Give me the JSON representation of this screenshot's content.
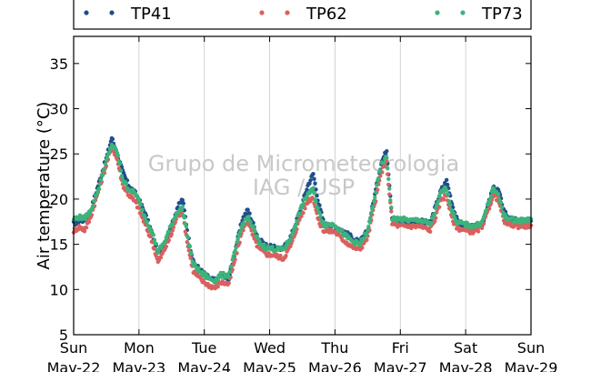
{
  "chart_data": {
    "type": "scatter",
    "title": "",
    "ylabel": "Air temperature (°C)",
    "xlabel": "",
    "ylim": [
      5,
      38
    ],
    "yticks": [
      5,
      10,
      15,
      20,
      25,
      30,
      35
    ],
    "xlim": [
      "2022-05-22T00:00",
      "2022-05-29T00:00"
    ],
    "x_ticks": [
      {
        "day": "Sun",
        "date": "Mav-22"
      },
      {
        "day": "Mon",
        "date": "Mav-23"
      },
      {
        "day": "Tue",
        "date": "Mav-24"
      },
      {
        "day": "Wed",
        "date": "Mav-25"
      },
      {
        "day": "Thu",
        "date": "Mav-26"
      },
      {
        "day": "Fri",
        "date": "Mav-27"
      },
      {
        "day": "Sat",
        "date": "Mav-28"
      },
      {
        "day": "Sun",
        "date": "Mav-29"
      }
    ],
    "grid": "vertical",
    "legend_position": "top",
    "watermark": [
      "Grupo de Micrometeorologia",
      "IAG / USP"
    ],
    "x_units": "hours since 2022-05-22 00:00",
    "series": [
      {
        "name": "TP41",
        "color": "#1f4e8c",
        "points": [
          [
            0,
            17.3
          ],
          [
            2,
            17.6
          ],
          [
            4,
            17.7
          ],
          [
            6,
            18.5
          ],
          [
            9,
            21.5
          ],
          [
            12,
            24.5
          ],
          [
            14,
            26.8
          ],
          [
            16,
            25.0
          ],
          [
            18,
            23.0
          ],
          [
            20,
            21.6
          ],
          [
            23,
            20.5
          ],
          [
            26,
            18.6
          ],
          [
            29,
            16.0
          ],
          [
            31,
            14.0
          ],
          [
            33,
            14.8
          ],
          [
            36,
            17.0
          ],
          [
            38,
            19.0
          ],
          [
            40,
            20.0
          ],
          [
            42,
            16.0
          ],
          [
            44,
            13.0
          ],
          [
            47,
            12.0
          ],
          [
            50,
            11.2
          ],
          [
            52,
            11.0
          ],
          [
            54,
            11.5
          ],
          [
            57,
            11.2
          ],
          [
            60,
            15.2
          ],
          [
            62,
            17.8
          ],
          [
            64,
            18.8
          ],
          [
            66,
            17.2
          ],
          [
            68,
            15.5
          ],
          [
            71,
            14.8
          ],
          [
            74,
            14.6
          ],
          [
            77,
            14.5
          ],
          [
            80,
            16.0
          ],
          [
            83,
            18.5
          ],
          [
            86,
            21.5
          ],
          [
            88,
            22.8
          ],
          [
            90,
            19.5
          ],
          [
            92,
            17.2
          ],
          [
            96,
            17.0
          ],
          [
            99,
            16.5
          ],
          [
            102,
            15.8
          ],
          [
            105,
            15.2
          ],
          [
            108,
            16.5
          ],
          [
            111,
            21.0
          ],
          [
            113,
            24.0
          ],
          [
            115,
            25.4
          ],
          [
            117,
            18.0
          ],
          [
            120,
            17.5
          ],
          [
            124,
            17.4
          ],
          [
            127,
            17.6
          ],
          [
            131,
            17.3
          ],
          [
            133,
            19.2
          ],
          [
            135,
            21.0
          ],
          [
            137,
            22.0
          ],
          [
            139,
            19.5
          ],
          [
            141,
            17.5
          ],
          [
            144,
            17.0
          ],
          [
            147,
            16.9
          ],
          [
            150,
            17.2
          ],
          [
            152,
            19.0
          ],
          [
            154,
            21.2
          ],
          [
            156,
            21.0
          ],
          [
            158,
            18.8
          ],
          [
            160,
            17.8
          ],
          [
            164,
            17.6
          ],
          [
            168,
            17.6
          ]
        ]
      },
      {
        "name": "TP62",
        "color": "#d9605f",
        "points": [
          [
            0,
            16.5
          ],
          [
            2,
            16.9
          ],
          [
            4,
            16.6
          ],
          [
            6,
            17.8
          ],
          [
            9,
            20.8
          ],
          [
            12,
            23.8
          ],
          [
            14,
            25.8
          ],
          [
            16,
            24.4
          ],
          [
            18,
            21.6
          ],
          [
            20,
            20.6
          ],
          [
            23,
            19.5
          ],
          [
            26,
            17.4
          ],
          [
            29,
            15.2
          ],
          [
            31,
            13.0
          ],
          [
            33,
            14.2
          ],
          [
            36,
            16.2
          ],
          [
            38,
            18.2
          ],
          [
            40,
            18.5
          ],
          [
            42,
            14.8
          ],
          [
            44,
            12.0
          ],
          [
            47,
            11.0
          ],
          [
            50,
            10.4
          ],
          [
            52,
            10.2
          ],
          [
            54,
            10.8
          ],
          [
            57,
            10.6
          ],
          [
            60,
            14.2
          ],
          [
            62,
            16.6
          ],
          [
            64,
            17.6
          ],
          [
            66,
            15.8
          ],
          [
            68,
            14.5
          ],
          [
            71,
            13.9
          ],
          [
            74,
            13.8
          ],
          [
            77,
            13.4
          ],
          [
            80,
            15.0
          ],
          [
            83,
            17.8
          ],
          [
            86,
            19.8
          ],
          [
            88,
            20.2
          ],
          [
            90,
            17.5
          ],
          [
            92,
            16.5
          ],
          [
            96,
            16.4
          ],
          [
            99,
            15.5
          ],
          [
            102,
            14.8
          ],
          [
            105,
            14.4
          ],
          [
            108,
            15.8
          ],
          [
            111,
            20.0
          ],
          [
            113,
            23.0
          ],
          [
            115,
            24.0
          ],
          [
            117,
            17.3
          ],
          [
            120,
            17.0
          ],
          [
            124,
            17.0
          ],
          [
            127,
            17.0
          ],
          [
            131,
            16.6
          ],
          [
            133,
            18.0
          ],
          [
            135,
            20.0
          ],
          [
            137,
            20.4
          ],
          [
            139,
            17.8
          ],
          [
            141,
            16.8
          ],
          [
            144,
            16.5
          ],
          [
            147,
            16.4
          ],
          [
            150,
            16.8
          ],
          [
            152,
            18.5
          ],
          [
            154,
            20.4
          ],
          [
            156,
            20.0
          ],
          [
            158,
            17.6
          ],
          [
            160,
            17.2
          ],
          [
            164,
            17.0
          ],
          [
            168,
            17.1
          ]
        ]
      },
      {
        "name": "TP73",
        "color": "#3cb37a",
        "points": [
          [
            0,
            17.8
          ],
          [
            2,
            18.0
          ],
          [
            4,
            17.9
          ],
          [
            6,
            18.6
          ],
          [
            9,
            21.0
          ],
          [
            12,
            24.2
          ],
          [
            14,
            26.0
          ],
          [
            16,
            25.2
          ],
          [
            18,
            22.2
          ],
          [
            20,
            21.2
          ],
          [
            23,
            20.5
          ],
          [
            26,
            18.2
          ],
          [
            29,
            16.2
          ],
          [
            31,
            14.2
          ],
          [
            33,
            15.0
          ],
          [
            36,
            17.2
          ],
          [
            38,
            18.6
          ],
          [
            40,
            19.0
          ],
          [
            42,
            15.6
          ],
          [
            44,
            12.8
          ],
          [
            47,
            11.8
          ],
          [
            50,
            11.2
          ],
          [
            52,
            11.0
          ],
          [
            54,
            11.6
          ],
          [
            57,
            11.6
          ],
          [
            60,
            15.0
          ],
          [
            62,
            17.2
          ],
          [
            64,
            18.0
          ],
          [
            66,
            16.8
          ],
          [
            68,
            15.2
          ],
          [
            71,
            14.6
          ],
          [
            74,
            14.5
          ],
          [
            77,
            14.4
          ],
          [
            80,
            15.8
          ],
          [
            83,
            18.6
          ],
          [
            86,
            20.6
          ],
          [
            88,
            21.0
          ],
          [
            90,
            18.5
          ],
          [
            92,
            17.2
          ],
          [
            96,
            17.2
          ],
          [
            99,
            16.2
          ],
          [
            102,
            15.4
          ],
          [
            105,
            15.0
          ],
          [
            108,
            16.4
          ],
          [
            111,
            20.8
          ],
          [
            113,
            23.8
          ],
          [
            115,
            24.6
          ],
          [
            117,
            17.8
          ],
          [
            120,
            17.8
          ],
          [
            124,
            17.6
          ],
          [
            127,
            17.7
          ],
          [
            131,
            17.2
          ],
          [
            133,
            18.8
          ],
          [
            135,
            20.8
          ],
          [
            137,
            21.2
          ],
          [
            139,
            18.6
          ],
          [
            141,
            17.4
          ],
          [
            144,
            17.2
          ],
          [
            147,
            17.0
          ],
          [
            150,
            17.4
          ],
          [
            152,
            19.2
          ],
          [
            154,
            21.0
          ],
          [
            156,
            20.6
          ],
          [
            158,
            18.2
          ],
          [
            160,
            17.8
          ],
          [
            164,
            17.6
          ],
          [
            168,
            17.8
          ]
        ]
      }
    ]
  }
}
